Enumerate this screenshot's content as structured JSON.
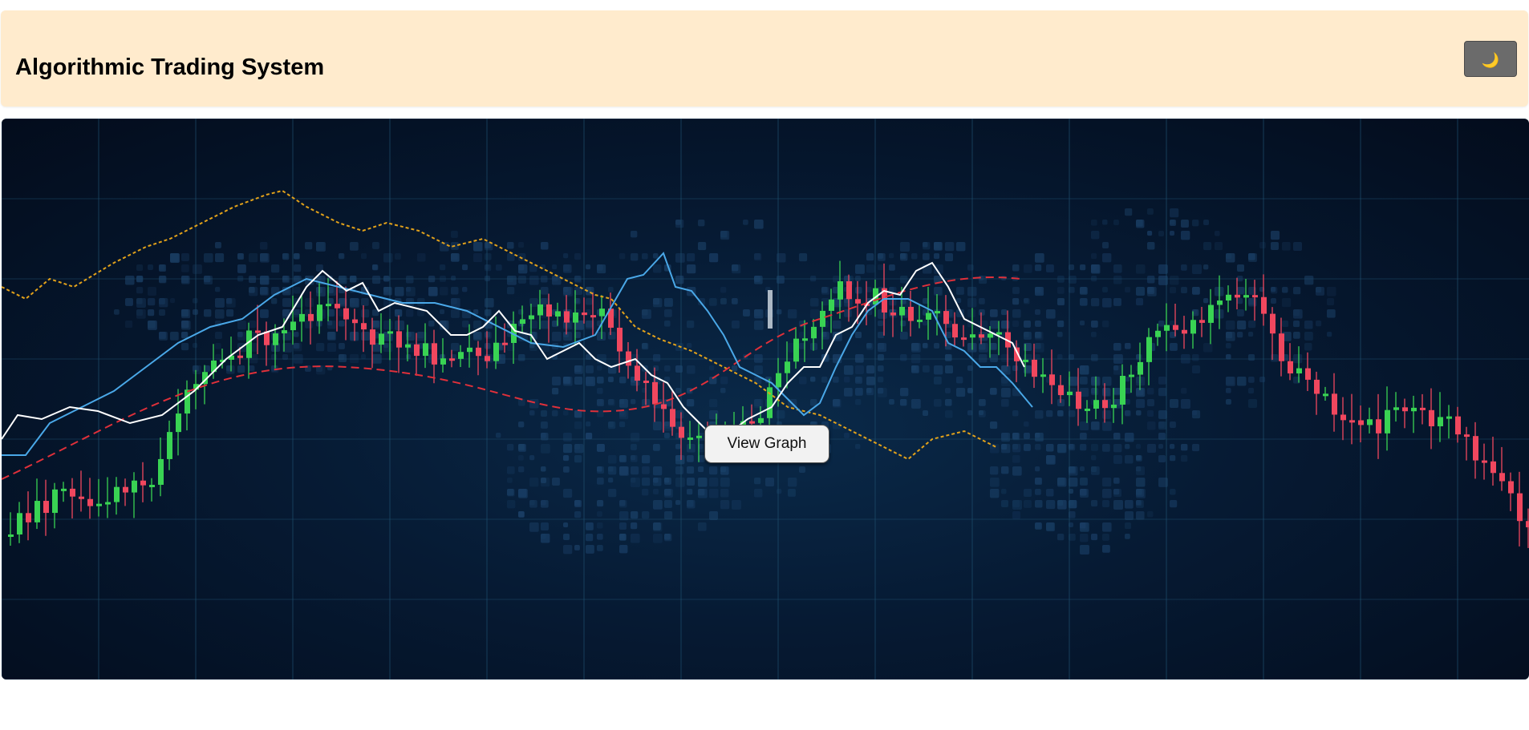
{
  "header": {
    "title": "Algorithmic Trading System",
    "theme_toggle_icon": "🌙",
    "background_color": "#ffebcd"
  },
  "hero": {
    "image_semantic": "trading-chart-background",
    "view_graph_label": "View Graph",
    "colors": {
      "background": "#061a33",
      "bull_candle": "#39d353",
      "bear_candle": "#f0475e",
      "upper_band": "#e3a21a",
      "lower_curve": "#e0303a",
      "moving_avg_fast": "#4aa8e8",
      "moving_avg_slow": "#ffffff"
    }
  }
}
